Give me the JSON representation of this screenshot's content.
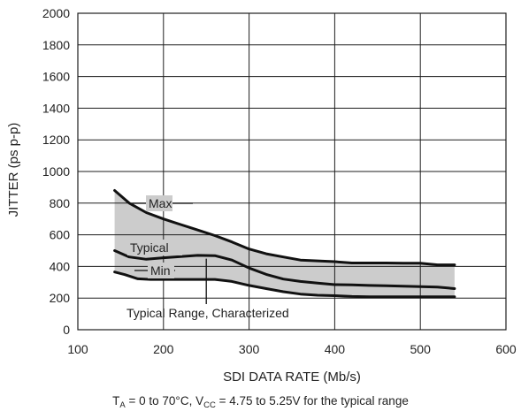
{
  "chart_data": {
    "type": "line",
    "title": "",
    "xlabel": "SDI DATA RATE (Mb/s)",
    "ylabel": "JITTER (ps p-p)",
    "xlim": [
      100,
      600
    ],
    "ylim": [
      0,
      2000
    ],
    "xticks": [
      "100",
      "200",
      "300",
      "400",
      "500",
      "600"
    ],
    "yticks": [
      "0",
      "200",
      "400",
      "600",
      "800",
      "1000",
      "1200",
      "1400",
      "1600",
      "1800",
      "2000"
    ],
    "grid": true,
    "series": [
      {
        "name": "Max",
        "x": [
          143,
          160,
          180,
          200,
          220,
          240,
          260,
          280,
          300,
          320,
          340,
          360,
          380,
          400,
          420,
          440,
          460,
          480,
          500,
          520,
          540
        ],
        "y": [
          880,
          800,
          740,
          700,
          665,
          630,
          595,
          555,
          510,
          480,
          460,
          440,
          435,
          430,
          422,
          422,
          422,
          420,
          420,
          410,
          410
        ]
      },
      {
        "name": "Typical",
        "x": [
          143,
          160,
          180,
          200,
          220,
          240,
          260,
          280,
          300,
          320,
          340,
          360,
          380,
          400,
          420,
          440,
          460,
          480,
          500,
          520,
          540
        ],
        "y": [
          500,
          460,
          445,
          455,
          462,
          470,
          468,
          440,
          390,
          350,
          320,
          305,
          295,
          285,
          283,
          280,
          278,
          275,
          272,
          270,
          260
        ]
      },
      {
        "name": "Min",
        "x": [
          143,
          155,
          170,
          185,
          200,
          220,
          240,
          260,
          280,
          300,
          320,
          340,
          360,
          380,
          400,
          420,
          440,
          460,
          480,
          500,
          520,
          540
        ],
        "y": [
          365,
          348,
          322,
          318,
          318,
          318,
          318,
          318,
          305,
          280,
          260,
          240,
          225,
          218,
          215,
          210,
          208,
          208,
          208,
          208,
          208,
          208
        ]
      }
    ],
    "band": {
      "label": "Typical Range, Characterized",
      "fill": "#cccccc"
    },
    "annotations": [
      {
        "text": "Max",
        "series": "Max"
      },
      {
        "text": "Typical",
        "series": "Typical"
      },
      {
        "text": "Min",
        "series": "Min"
      },
      {
        "text": "Typical Range, Characterized",
        "series": "band"
      }
    ],
    "colors": {
      "line": "#111111",
      "grid": "#1e1e1e",
      "band": "#cccccc"
    }
  },
  "footnote": {
    "t_main": "T",
    "t_sub": "A",
    "mid": " = 0 to 70°C, V",
    "v_sub": "CC",
    "tail": " = 4.75 to 5.25V for the typical range"
  }
}
